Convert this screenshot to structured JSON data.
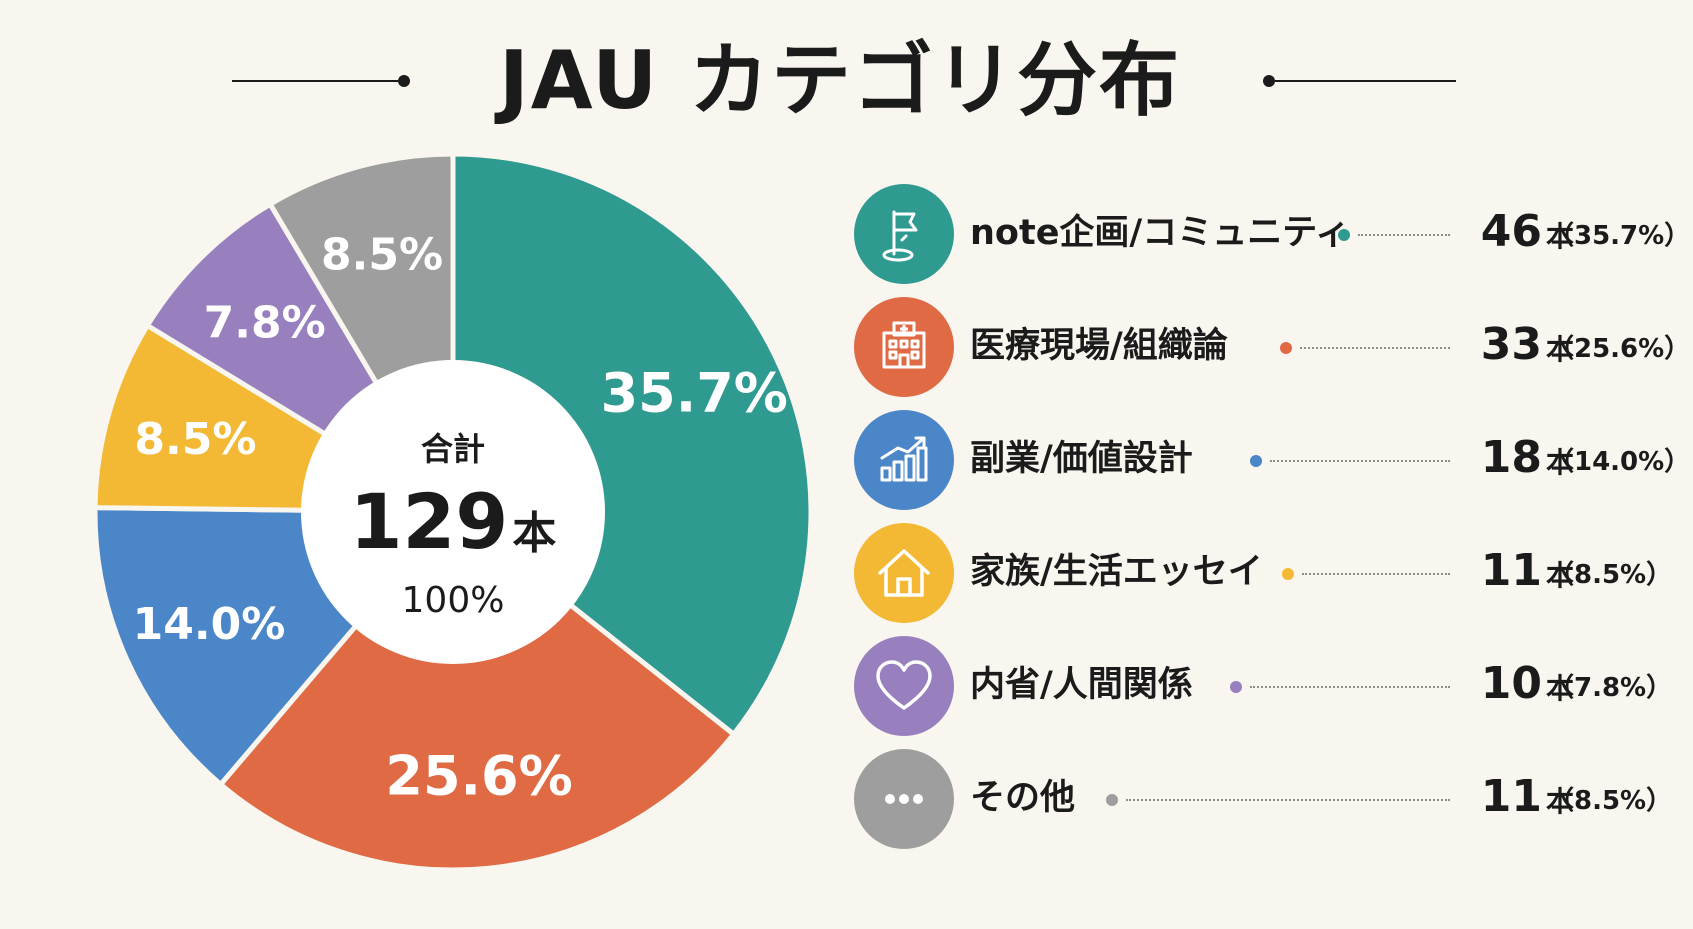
{
  "title": "JAU カテゴリ分布",
  "colors": {
    "teal": "#2e9a90",
    "orange": "#e06a44",
    "blue": "#4a86c8",
    "yellow": "#f3b935",
    "purple": "#9880bf",
    "gray": "#9e9e9e"
  },
  "center": {
    "label": "合計",
    "total": "129",
    "unit": "本",
    "percent": "100%"
  },
  "chart_data": {
    "type": "pie",
    "categories": [
      "note企画/コミュニティ",
      "医療現場/組織論",
      "副業/価値設計",
      "家族/生活エッセイ",
      "内省/人間関係",
      "その他"
    ],
    "values": [
      46,
      33,
      18,
      11,
      10,
      11
    ],
    "percent_labels": [
      "35.7%",
      "25.6%",
      "14.0%",
      "8.5%",
      "7.8%",
      "8.5%"
    ],
    "colors": [
      "#2e9a90",
      "#e06a44",
      "#4a86c8",
      "#f3b935",
      "#9880bf",
      "#9e9e9e"
    ],
    "title": "JAU カテゴリ分布",
    "legend": "right"
  },
  "legend": [
    {
      "label": "note企画/コミュニティ",
      "count": "46",
      "unit": "本",
      "pct": "（35.7%）",
      "icon": "flag-icon",
      "color": "#2e9a90"
    },
    {
      "label": "医療現場/組織論",
      "count": "33",
      "unit": "本",
      "pct": "（25.6%）",
      "icon": "hospital-icon",
      "color": "#e06a44"
    },
    {
      "label": "副業/価値設計",
      "count": "18",
      "unit": "本",
      "pct": "（14.0%）",
      "icon": "growth-chart-icon",
      "color": "#4a86c8"
    },
    {
      "label": "家族/生活エッセイ",
      "count": "11",
      "unit": "本",
      "pct": "（8.5%）",
      "icon": "house-icon",
      "color": "#f3b935"
    },
    {
      "label": "内省/人間関係",
      "count": "10",
      "unit": "本",
      "pct": "（7.8%）",
      "icon": "heart-icon",
      "color": "#9880bf"
    },
    {
      "label": "その他",
      "count": "11",
      "unit": "本",
      "pct": "（8.5%）",
      "icon": "ellipsis-icon",
      "color": "#9e9e9e"
    }
  ]
}
